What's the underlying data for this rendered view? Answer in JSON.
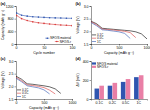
{
  "chart_data": [
    {
      "type": "line",
      "title": "(a)",
      "x_label": "Cycle number",
      "y_label": "Capacity (mAh g⁻¹)",
      "x": [
        1,
        10,
        20,
        30,
        40,
        50,
        60,
        70,
        80,
        90,
        100
      ],
      "series": [
        {
          "name": "NFO/S material",
          "color": "#2f55b0",
          "values": [
            980,
            910,
            880,
            860,
            850,
            840,
            830,
            825,
            820,
            815,
            810
          ]
        },
        {
          "name": "NFO/S-r",
          "color": "#d93a3a",
          "values": [
            900,
            800,
            740,
            700,
            670,
            650,
            630,
            615,
            600,
            590,
            580
          ]
        }
      ],
      "marker": "circle",
      "xlim": [
        0,
        100
      ],
      "xticks": [
        0,
        50,
        100
      ],
      "ylim": [
        0,
        1200
      ],
      "yticks": [
        0,
        400,
        800,
        1200
      ],
      "legend": "bottom-right"
    },
    {
      "type": "line",
      "title": "(b)",
      "x_label": "Capacity (mAh g⁻¹)",
      "y_label": "Voltage (V)",
      "x": [
        0,
        100,
        200,
        300,
        400,
        500,
        600,
        700,
        800,
        900,
        1000
      ],
      "series": [
        {
          "name": "0.1C",
          "color": "#000000",
          "values": [
            2.4,
            2.3,
            2.12,
            2.1,
            2.08,
            2.06,
            2.04,
            2.02,
            1.98,
            1.9,
            1.7
          ]
        },
        {
          "name": "0.5C",
          "color": "#d93a3a",
          "values": [
            2.38,
            2.26,
            2.09,
            2.07,
            2.05,
            2.03,
            2.0,
            1.95,
            1.75,
            null,
            null
          ]
        },
        {
          "name": "1C",
          "color": "#2f55b0",
          "values": [
            2.35,
            2.22,
            2.06,
            2.04,
            2.01,
            1.98,
            1.92,
            1.72,
            null,
            null,
            null
          ]
        }
      ],
      "xlim": [
        0,
        1000
      ],
      "xticks": [
        0,
        500,
        1000
      ],
      "ylim": [
        1.5,
        3.0
      ],
      "yticks": [
        1.5,
        {
          "value": 2,
          "label": "2.0"
        },
        2.5,
        {
          "value": 3,
          "label": "3.0"
        }
      ],
      "legend": "bottom-left"
    },
    {
      "type": "line",
      "title": "(c)",
      "x_label": "Capacity (mAh g⁻¹)",
      "y_label": "Voltage (V)",
      "x": [
        0,
        100,
        200,
        300,
        400,
        500,
        600,
        700,
        800,
        900,
        1000
      ],
      "series": [
        {
          "name": "0.1C",
          "color": "#000000",
          "values": [
            2.4,
            2.28,
            2.1,
            2.08,
            2.05,
            2.02,
            1.98,
            1.9,
            1.72,
            null,
            null
          ]
        },
        {
          "name": "0.5C",
          "color": "#d93a3a",
          "values": [
            2.36,
            2.22,
            2.06,
            2.03,
            2.0,
            1.95,
            1.85,
            1.7,
            null,
            null,
            null
          ]
        },
        {
          "name": "1C",
          "color": "#2f55b0",
          "values": [
            2.32,
            2.18,
            2.02,
            1.98,
            1.94,
            1.86,
            1.7,
            null,
            null,
            null,
            null
          ]
        }
      ],
      "xlim": [
        0,
        1000
      ],
      "xticks": [
        0,
        500,
        1000
      ],
      "ylim": [
        1.5,
        3.0
      ],
      "yticks": [
        1.5,
        {
          "value": 2,
          "label": "2.0"
        },
        2.5,
        {
          "value": 3,
          "label": "3.0"
        }
      ],
      "legend": "bottom-left"
    },
    {
      "type": "bar",
      "title": "(d)",
      "y_label": "ΔV (mV)",
      "categories": [
        "0.1C",
        "0.2C",
        "0.5C",
        "1C"
      ],
      "series": [
        {
          "name": "NFO/S material",
          "color": "#2f55b0",
          "values": [
            110,
            140,
            180,
            230
          ]
        },
        {
          "name": "NFO/S-r",
          "color": "#e97fa6",
          "values": [
            140,
            170,
            210,
            250
          ]
        }
      ],
      "ylim": [
        0,
        400
      ],
      "yticks": [
        0,
        200,
        400
      ],
      "legend": "top-left"
    }
  ]
}
